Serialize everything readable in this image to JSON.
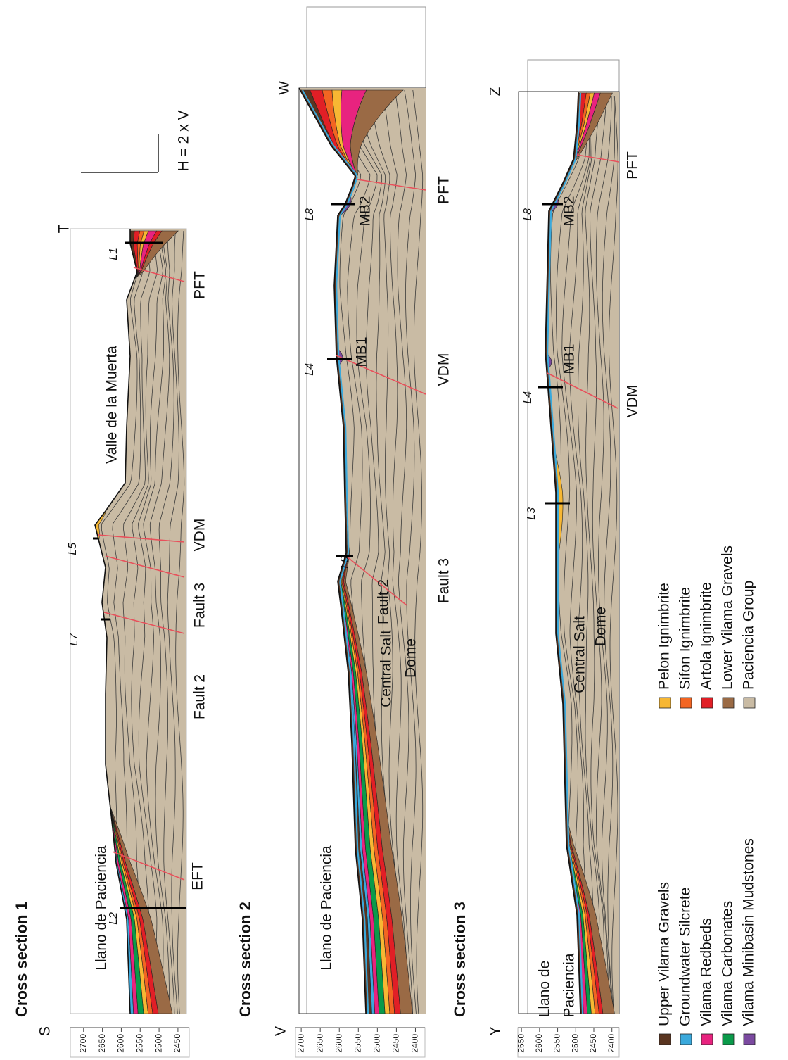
{
  "sections": [
    {
      "title": "Cross section 1",
      "start": "S",
      "end": "T",
      "ylim": [
        2735,
        2420
      ],
      "yticks": [
        2700,
        2650,
        2600,
        2550,
        2500,
        2450
      ],
      "labels": [
        "Llano de Paciencia",
        "Valle de la Muerta",
        "EFT",
        "Fault 2",
        "Fault 3",
        "VDM",
        "PFT"
      ],
      "wells": [
        "L2",
        "L7",
        "L5",
        "L1"
      ]
    },
    {
      "title": "Cross section 2",
      "start": "V",
      "end": "W",
      "ylim": [
        2715,
        2375
      ],
      "yticks": [
        2700,
        2650,
        2600,
        2550,
        2500,
        2450,
        2400
      ],
      "labels": [
        "Llano de Paciencia",
        "Fault 2",
        "Central Salt",
        "Dome",
        "Fault 3",
        "MB1",
        "VDM",
        "MB2",
        "PFT"
      ],
      "wells": [
        "L9",
        "L4",
        "L8"
      ]
    },
    {
      "title": "Cross section 3",
      "start": "Y",
      "end": "Z",
      "ylim": [
        2660,
        2380
      ],
      "yticks": [
        2650,
        2600,
        2550,
        2500,
        2450,
        2400
      ],
      "labels": [
        "Llano de",
        "Paciencia",
        "Central Salt",
        "Dome",
        "MB1",
        "VDM",
        "MB2",
        "PFT"
      ],
      "wells": [
        "L3",
        "L4",
        "L8"
      ]
    }
  ],
  "scale_label": "H = 2 x V",
  "legend": [
    {
      "name": "Upper Vilama Gravels",
      "color": "#5a3520"
    },
    {
      "name": "Groundwater Silcrete",
      "color": "#3aa9dc"
    },
    {
      "name": "Vilama Redbeds",
      "color": "#e8237f"
    },
    {
      "name": "Vilama Carbonates",
      "color": "#0a9a4a"
    },
    {
      "name": "Vilama Minibasin Mudstones",
      "color": "#7b4aa0"
    },
    {
      "name": "Pelon Ignimbrite",
      "color": "#f7b733"
    },
    {
      "name": "Sifon Ignimbrite",
      "color": "#f26522"
    },
    {
      "name": "Artola Ignimbrite",
      "color": "#e11f26"
    },
    {
      "name": "Lower Vilama Gravels",
      "color": "#9a6a45"
    },
    {
      "name": "Paciencia Group",
      "color": "#c9bba4"
    }
  ]
}
